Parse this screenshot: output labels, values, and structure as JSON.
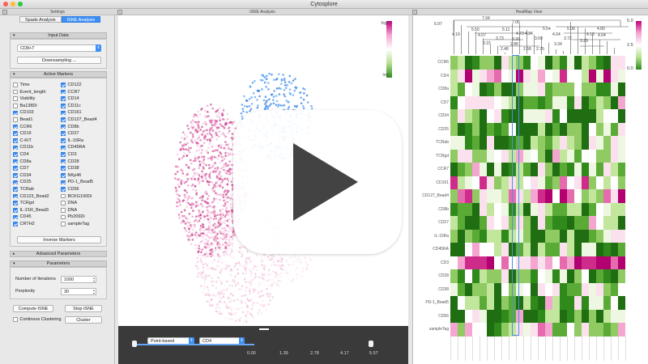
{
  "app_title": "Cytosplore",
  "settings": {
    "header": "Settings",
    "tabs": [
      "Spade Analysis",
      "tSNE Analysis"
    ],
    "input_data": {
      "title": "Input Data",
      "dataset": "CD8+T",
      "downsampling_label": "Downsampling ..."
    },
    "active_markers": {
      "title": "Active Markers",
      "left": [
        {
          "label": "Time",
          "checked": false
        },
        {
          "label": "Event_length",
          "checked": false
        },
        {
          "label": "Viability",
          "checked": false
        },
        {
          "label": "Ba138Di",
          "checked": false
        },
        {
          "label": "CD103",
          "checked": true
        },
        {
          "label": "Bead1",
          "checked": false
        },
        {
          "label": "CCR6",
          "checked": true
        },
        {
          "label": "CD19",
          "checked": true
        },
        {
          "label": "C-KIT",
          "checked": true
        },
        {
          "label": "CD11b",
          "checked": true
        },
        {
          "label": "CD4",
          "checked": true
        },
        {
          "label": "CD8a",
          "checked": true
        },
        {
          "label": "CD7",
          "checked": true
        },
        {
          "label": "CD34",
          "checked": true
        },
        {
          "label": "CD25",
          "checked": true
        },
        {
          "label": "TCRab",
          "checked": true
        },
        {
          "label": "CD123_Bead2",
          "checked": true
        },
        {
          "label": "TCRgd",
          "checked": true
        },
        {
          "label": "IL-21R_Bead3",
          "checked": true
        },
        {
          "label": "CD45",
          "checked": true
        },
        {
          "label": "CRTH2",
          "checked": true
        }
      ],
      "right": [
        {
          "label": "CD122",
          "checked": true
        },
        {
          "label": "CCR7",
          "checked": true
        },
        {
          "label": "CD14",
          "checked": true
        },
        {
          "label": "CD11c",
          "checked": true
        },
        {
          "label": "CD161",
          "checked": true
        },
        {
          "label": "CD127_Bead4",
          "checked": true
        },
        {
          "label": "CD8b",
          "checked": true
        },
        {
          "label": "CD27",
          "checked": true
        },
        {
          "label": "IL-15Ra",
          "checked": true
        },
        {
          "label": "CD45RA",
          "checked": true
        },
        {
          "label": "CD3",
          "checked": true
        },
        {
          "label": "CD28",
          "checked": true
        },
        {
          "label": "CD38",
          "checked": true
        },
        {
          "label": "NKp46",
          "checked": true
        },
        {
          "label": "PD-1_Bead5",
          "checked": true
        },
        {
          "label": "CD56",
          "checked": true
        },
        {
          "label": "BCKG190Di",
          "checked": false
        },
        {
          "label": "DNA",
          "checked": false
        },
        {
          "label": "DNA",
          "checked": false
        },
        {
          "label": "Pb206Di",
          "checked": false
        },
        {
          "label": "sampleTag",
          "checked": false
        }
      ],
      "inverse_label": "Inverse Markers"
    },
    "advanced": {
      "title": "Advanced Parameters"
    },
    "parameters": {
      "title": "Parameters",
      "iterations_label": "Number of Iterations",
      "iterations_value": "1000",
      "perplexity_label": "Perplexity",
      "perplexity_value": "30"
    },
    "compute_label": "Compute tSNE",
    "stop_label": "Stop tSNE",
    "continuous_label": "Continous Clustering",
    "cluster_label": "Cluster"
  },
  "tsne": {
    "header": "tSNE Analysis",
    "legend_high": "high",
    "legend_low": "low",
    "mode": "Point-based",
    "marker": "CD4",
    "slider_ticks": [
      "0.00",
      "1.39",
      "2.78",
      "4.17",
      "5.57"
    ],
    "colors": {
      "high": "#c3007a",
      "low": "#2f8a1b",
      "selected": "#3d8ff5"
    }
  },
  "heatmap": {
    "header": "HeatMap View",
    "rows": [
      "CCR6",
      "CD4",
      "CD8a",
      "CD7",
      "CD34",
      "CD25",
      "TCRab",
      "TCRgd",
      "CCR7",
      "CD161",
      "CD127_Bead4",
      "CD8b",
      "CD27",
      "IL-15Ra",
      "CD45RA",
      "CD3",
      "CD28",
      "CD38",
      "PD-1_Bead5",
      "CD56",
      "sampleTag"
    ],
    "dendro_labels": [
      "6.97",
      "7.94",
      "7.06",
      "5.50",
      "5.11",
      "5.54",
      "5.08",
      "4.80",
      "4.19",
      "4.07",
      "4.73",
      "4.34",
      "4.04",
      "4.13",
      "3.73",
      "3.69",
      "3.30",
      "3.72",
      "3.29",
      "4.04",
      "3.15",
      "2.88",
      "2.48",
      "3.34",
      "2.58",
      "2.75"
    ],
    "legend_max": "5.0",
    "legend_mid": "2.5",
    "legend_min": "0.0"
  }
}
